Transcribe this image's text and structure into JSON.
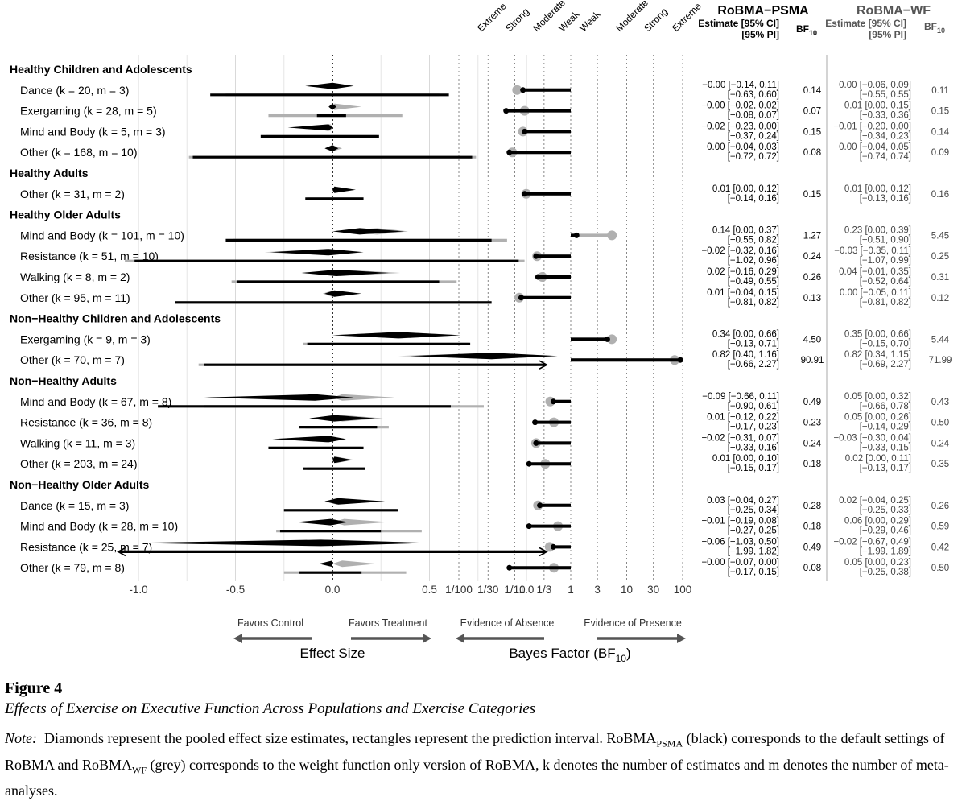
{
  "colors": {
    "psma": "#000000",
    "wf": "#b0b0b0",
    "grid": "#e6e6e6",
    "arrow": "#555555",
    "header_wf": "#555555"
  },
  "chart_data": {
    "type": "forest",
    "title": "Effects of Exercise on Executive Function Across Populations and Exercise Categories",
    "series": [
      {
        "name": "RoBMA-PSMA",
        "color": "#000000"
      },
      {
        "name": "RoBMA-WF",
        "color": "#b0b0b0"
      }
    ],
    "effect_axis": {
      "label": "Effect Size",
      "range": [
        -1.0,
        1.0
      ],
      "ticks": [
        "-1.0",
        "-0.5",
        "0.0",
        "0.5",
        "1.0"
      ],
      "tick_values": [
        -1.0,
        -0.5,
        0.0,
        0.5,
        1.0
      ],
      "left_label": "Favors Control",
      "right_label": "Favors Treatment"
    },
    "bf_axis": {
      "label_main": "Bayes Factor (BF",
      "label_sub": "10",
      "label_close": ")",
      "ticks": [
        "1/100",
        "1/30",
        "1/10",
        "1/3",
        "1",
        "3",
        "10",
        "30",
        "100"
      ],
      "tick_values": [
        0.01,
        0.0333,
        0.1,
        0.3333,
        1,
        3,
        10,
        30,
        100
      ],
      "evidence_labels": [
        "Extreme",
        "Strong",
        "Moderate",
        "Weak",
        "Weak",
        "Moderate",
        "Strong",
        "Extreme"
      ],
      "left_label": "Evidence of Absence",
      "right_label": "Evidence of Presence"
    },
    "headers": {
      "psma_title": "RoBMA−PSMA",
      "wf_title": "RoBMA−WF",
      "estimate_line1": "Estimate [95% CI]",
      "estimate_line2": "[95% PI]",
      "bf_label": "BF",
      "bf_sub": "10"
    },
    "groups": [
      {
        "title": "Healthy Children and Adolescents",
        "rows": [
          {
            "label": "Dance (k = 20, m = 3)",
            "psma": {
              "est": -0.0,
              "ci": [
                -0.14,
                0.11
              ],
              "pi": [
                -0.63,
                0.6
              ],
              "bf": 0.14
            },
            "wf": {
              "est": 0.0,
              "ci": [
                -0.06,
                0.09
              ],
              "pi": [
                -0.55,
                0.55
              ],
              "bf": 0.11
            },
            "text": {
              "psma_line1": "−0.00 [−0.14, 0.11]",
              "psma_line2": "[−0.63, 0.60]",
              "psma_bf": "0.14",
              "wf_line1": "0.00 [−0.06, 0.09]",
              "wf_line2": "[−0.55, 0.55]",
              "wf_bf": "0.11"
            }
          },
          {
            "label": "Exergaming (k = 28, m = 5)",
            "psma": {
              "est": -0.0,
              "ci": [
                -0.02,
                0.02
              ],
              "pi": [
                -0.08,
                0.07
              ],
              "bf": 0.07
            },
            "wf": {
              "est": 0.01,
              "ci": [
                0.0,
                0.15
              ],
              "pi": [
                -0.33,
                0.36
              ],
              "bf": 0.15
            },
            "text": {
              "psma_line1": "−0.00 [−0.02, 0.02]",
              "psma_line2": "[−0.08, 0.07]",
              "psma_bf": "0.07",
              "wf_line1": "0.01 [0.00, 0.15]",
              "wf_line2": "[−0.33, 0.36]",
              "wf_bf": "0.15"
            }
          },
          {
            "label": "Mind and Body (k = 5, m = 3)",
            "psma": {
              "est": -0.02,
              "ci": [
                -0.23,
                0.0
              ],
              "pi": [
                -0.37,
                0.24
              ],
              "bf": 0.15
            },
            "wf": {
              "est": -0.01,
              "ci": [
                -0.2,
                0.0
              ],
              "pi": [
                -0.34,
                0.23
              ],
              "bf": 0.14
            },
            "text": {
              "psma_line1": "−0.02 [−0.23, 0.00]",
              "psma_line2": "[−0.37, 0.24]",
              "psma_bf": "0.15",
              "wf_line1": "−0.01 [−0.20, 0.00]",
              "wf_line2": "[−0.34, 0.23]",
              "wf_bf": "0.14"
            }
          },
          {
            "label": "Other (k = 168, m = 10)",
            "psma": {
              "est": 0.0,
              "ci": [
                -0.04,
                0.03
              ],
              "pi": [
                -0.72,
                0.72
              ],
              "bf": 0.08
            },
            "wf": {
              "est": 0.0,
              "ci": [
                -0.04,
                0.05
              ],
              "pi": [
                -0.74,
                0.74
              ],
              "bf": 0.09
            },
            "text": {
              "psma_line1": "0.00 [−0.04, 0.03]",
              "psma_line2": "[−0.72, 0.72]",
              "psma_bf": "0.08",
              "wf_line1": "0.00 [−0.04, 0.05]",
              "wf_line2": "[−0.74, 0.74]",
              "wf_bf": "0.09"
            }
          }
        ]
      },
      {
        "title": "Healthy Adults",
        "rows": [
          {
            "label": "Other (k = 31, m = 2)",
            "psma": {
              "est": 0.01,
              "ci": [
                0.0,
                0.12
              ],
              "pi": [
                -0.14,
                0.16
              ],
              "bf": 0.15
            },
            "wf": {
              "est": 0.01,
              "ci": [
                0.0,
                0.12
              ],
              "pi": [
                -0.13,
                0.16
              ],
              "bf": 0.16
            },
            "text": {
              "psma_line1": "0.01 [0.00, 0.12]",
              "psma_line2": "[−0.14, 0.16]",
              "psma_bf": "0.15",
              "wf_line1": "0.01 [0.00, 0.12]",
              "wf_line2": "[−0.13, 0.16]",
              "wf_bf": "0.16"
            }
          }
        ]
      },
      {
        "title": "Healthy Older Adults",
        "rows": [
          {
            "label": "Mind and Body (k = 101, m = 10)",
            "psma": {
              "est": 0.14,
              "ci": [
                0.0,
                0.37
              ],
              "pi": [
                -0.55,
                0.82
              ],
              "bf": 1.27
            },
            "wf": {
              "est": 0.23,
              "ci": [
                0.0,
                0.39
              ],
              "pi": [
                -0.51,
                0.9
              ],
              "bf": 5.45
            },
            "text": {
              "psma_line1": "0.14 [0.00, 0.37]",
              "psma_line2": "[−0.55, 0.82]",
              "psma_bf": "1.27",
              "wf_line1": "0.23 [0.00, 0.39]",
              "wf_line2": "[−0.51, 0.90]",
              "wf_bf": "5.45"
            }
          },
          {
            "label": "Resistance (k = 51, m = 10)",
            "psma": {
              "est": -0.02,
              "ci": [
                -0.32,
                0.16
              ],
              "pi": [
                -1.02,
                0.96
              ],
              "bf": 0.24
            },
            "wf": {
              "est": -0.03,
              "ci": [
                -0.35,
                0.11
              ],
              "pi": [
                -1.07,
                0.99
              ],
              "bf": 0.25
            },
            "text": {
              "psma_line1": "−0.02 [−0.32, 0.16]",
              "psma_line2": "[−1.02, 0.96]",
              "psma_bf": "0.24",
              "wf_line1": "−0.03 [−0.35, 0.11]",
              "wf_line2": "[−1.07, 0.99]",
              "wf_bf": "0.25"
            }
          },
          {
            "label": "Walking (k = 8, m = 2)",
            "psma": {
              "est": 0.02,
              "ci": [
                -0.16,
                0.29
              ],
              "pi": [
                -0.49,
                0.55
              ],
              "bf": 0.26
            },
            "wf": {
              "est": 0.04,
              "ci": [
                -0.01,
                0.35
              ],
              "pi": [
                -0.52,
                0.64
              ],
              "bf": 0.31
            },
            "text": {
              "psma_line1": "0.02 [−0.16, 0.29]",
              "psma_line2": "[−0.49, 0.55]",
              "psma_bf": "0.26",
              "wf_line1": "0.04 [−0.01, 0.35]",
              "wf_line2": "[−0.52, 0.64]",
              "wf_bf": "0.31"
            }
          },
          {
            "label": "Other (k = 95, m = 11)",
            "psma": {
              "est": 0.01,
              "ci": [
                -0.04,
                0.15
              ],
              "pi": [
                -0.81,
                0.82
              ],
              "bf": 0.13
            },
            "wf": {
              "est": 0.0,
              "ci": [
                -0.05,
                0.11
              ],
              "pi": [
                -0.81,
                0.82
              ],
              "bf": 0.12
            },
            "text": {
              "psma_line1": "0.01 [−0.04, 0.15]",
              "psma_line2": "[−0.81, 0.82]",
              "psma_bf": "0.13",
              "wf_line1": "0.00 [−0.05, 0.11]",
              "wf_line2": "[−0.81, 0.82]",
              "wf_bf": "0.12"
            }
          }
        ]
      },
      {
        "title": "Non−Healthy Children and Adolescents",
        "rows": [
          {
            "label": "Exergaming (k = 9, m = 3)",
            "psma": {
              "est": 0.34,
              "ci": [
                0.0,
                0.66
              ],
              "pi": [
                -0.13,
                0.71
              ],
              "bf": 4.5
            },
            "wf": {
              "est": 0.35,
              "ci": [
                0.0,
                0.66
              ],
              "pi": [
                -0.15,
                0.7
              ],
              "bf": 5.44
            },
            "text": {
              "psma_line1": "0.34 [0.00, 0.66]",
              "psma_line2": "[−0.13, 0.71]",
              "psma_bf": "4.50",
              "wf_line1": "0.35 [0.00, 0.66]",
              "wf_line2": "[−0.15, 0.70]",
              "wf_bf": "5.44"
            }
          },
          {
            "label": "Other (k = 70, m = 7)",
            "psma": {
              "est": 0.82,
              "ci": [
                0.4,
                1.16
              ],
              "pi": [
                -0.66,
                2.27
              ],
              "bf": 90.91
            },
            "wf": {
              "est": 0.82,
              "ci": [
                0.34,
                1.15
              ],
              "pi": [
                -0.69,
                2.27
              ],
              "bf": 71.99
            },
            "text": {
              "psma_line1": "0.82 [0.40, 1.16]",
              "psma_line2": "[−0.66, 2.27]",
              "psma_bf": "90.91",
              "wf_line1": "0.82 [0.34, 1.15]",
              "wf_line2": "[−0.69, 2.27]",
              "wf_bf": "71.99"
            }
          }
        ]
      },
      {
        "title": "Non−Healthy Adults",
        "rows": [
          {
            "label": "Mind and Body (k = 67, m = 8)",
            "psma": {
              "est": -0.09,
              "ci": [
                -0.66,
                0.11
              ],
              "pi": [
                -0.9,
                0.61
              ],
              "bf": 0.49
            },
            "wf": {
              "est": 0.05,
              "ci": [
                0.0,
                0.32
              ],
              "pi": [
                -0.66,
                0.78
              ],
              "bf": 0.43
            },
            "text": {
              "psma_line1": "−0.09 [−0.66, 0.11]",
              "psma_line2": "[−0.90, 0.61]",
              "psma_bf": "0.49",
              "wf_line1": "0.05 [0.00, 0.32]",
              "wf_line2": "[−0.66, 0.78]",
              "wf_bf": "0.43"
            }
          },
          {
            "label": "Resistance (k = 36, m = 8)",
            "psma": {
              "est": 0.01,
              "ci": [
                -0.12,
                0.22
              ],
              "pi": [
                -0.17,
                0.23
              ],
              "bf": 0.23
            },
            "wf": {
              "est": 0.05,
              "ci": [
                0.0,
                0.26
              ],
              "pi": [
                -0.14,
                0.29
              ],
              "bf": 0.5
            },
            "text": {
              "psma_line1": "0.01 [−0.12, 0.22]",
              "psma_line2": "[−0.17, 0.23]",
              "psma_bf": "0.23",
              "wf_line1": "0.05 [0.00, 0.26]",
              "wf_line2": "[−0.14, 0.29]",
              "wf_bf": "0.50"
            }
          },
          {
            "label": "Walking (k = 11, m = 3)",
            "psma": {
              "est": -0.02,
              "ci": [
                -0.31,
                0.07
              ],
              "pi": [
                -0.33,
                0.16
              ],
              "bf": 0.24
            },
            "wf": {
              "est": -0.03,
              "ci": [
                -0.3,
                0.04
              ],
              "pi": [
                -0.33,
                0.15
              ],
              "bf": 0.24
            },
            "text": {
              "psma_line1": "−0.02 [−0.31, 0.07]",
              "psma_line2": "[−0.33, 0.16]",
              "psma_bf": "0.24",
              "wf_line1": "−0.03 [−0.30, 0.04]",
              "wf_line2": "[−0.33, 0.15]",
              "wf_bf": "0.24"
            }
          },
          {
            "label": "Other (k = 203, m = 24)",
            "psma": {
              "est": 0.01,
              "ci": [
                0.0,
                0.1
              ],
              "pi": [
                -0.15,
                0.17
              ],
              "bf": 0.18
            },
            "wf": {
              "est": 0.02,
              "ci": [
                0.0,
                0.11
              ],
              "pi": [
                -0.13,
                0.17
              ],
              "bf": 0.35
            },
            "text": {
              "psma_line1": "0.01 [0.00, 0.10]",
              "psma_line2": "[−0.15, 0.17]",
              "psma_bf": "0.18",
              "wf_line1": "0.02 [0.00, 0.11]",
              "wf_line2": "[−0.13, 0.17]",
              "wf_bf": "0.35"
            }
          }
        ]
      },
      {
        "title": "Non−Healthy Older Adults",
        "rows": [
          {
            "label": "Dance (k = 15, m = 3)",
            "psma": {
              "est": 0.03,
              "ci": [
                -0.04,
                0.27
              ],
              "pi": [
                -0.25,
                0.34
              ],
              "bf": 0.28
            },
            "wf": {
              "est": 0.02,
              "ci": [
                -0.04,
                0.25
              ],
              "pi": [
                -0.25,
                0.33
              ],
              "bf": 0.26
            },
            "text": {
              "psma_line1": "0.03 [−0.04, 0.27]",
              "psma_line2": "[−0.25, 0.34]",
              "psma_bf": "0.28",
              "wf_line1": "0.02 [−0.04, 0.25]",
              "wf_line2": "[−0.25, 0.33]",
              "wf_bf": "0.26"
            }
          },
          {
            "label": "Mind and Body (k = 28, m = 10)",
            "psma": {
              "est": -0.01,
              "ci": [
                -0.19,
                0.08
              ],
              "pi": [
                -0.27,
                0.25
              ],
              "bf": 0.18
            },
            "wf": {
              "est": 0.06,
              "ci": [
                0.0,
                0.29
              ],
              "pi": [
                -0.29,
                0.46
              ],
              "bf": 0.59
            },
            "text": {
              "psma_line1": "−0.01 [−0.19, 0.08]",
              "psma_line2": "[−0.27, 0.25]",
              "psma_bf": "0.18",
              "wf_line1": "0.06 [0.00, 0.29]",
              "wf_line2": "[−0.29, 0.46]",
              "wf_bf": "0.59"
            }
          },
          {
            "label": "Resistance (k = 25, m = 7)",
            "psma": {
              "est": -0.06,
              "ci": [
                -1.03,
                0.5
              ],
              "pi": [
                -1.99,
                1.82
              ],
              "bf": 0.49
            },
            "wf": {
              "est": -0.02,
              "ci": [
                -0.67,
                0.49
              ],
              "pi": [
                -1.99,
                1.89
              ],
              "bf": 0.42
            },
            "text": {
              "psma_line1": "−0.06 [−1.03, 0.50]",
              "psma_line2": "[−1.99, 1.82]",
              "psma_bf": "0.49",
              "wf_line1": "−0.02 [−0.67, 0.49]",
              "wf_line2": "[−1.99, 1.89]",
              "wf_bf": "0.42"
            }
          },
          {
            "label": "Other (k = 79, m = 8)",
            "psma": {
              "est": -0.0,
              "ci": [
                -0.07,
                0.0
              ],
              "pi": [
                -0.17,
                0.15
              ],
              "bf": 0.08
            },
            "wf": {
              "est": 0.05,
              "ci": [
                0.0,
                0.23
              ],
              "pi": [
                -0.25,
                0.38
              ],
              "bf": 0.5
            },
            "text": {
              "psma_line1": "−0.00 [−0.07, 0.00]",
              "psma_line2": "[−0.17, 0.15]",
              "psma_bf": "0.08",
              "wf_line1": "0.05 [0.00, 0.23]",
              "wf_line2": "[−0.25, 0.38]",
              "wf_bf": "0.50"
            }
          }
        ]
      }
    ]
  },
  "caption": {
    "figure_number": "Figure 4",
    "figure_title": "Effects of Exercise on Executive Function Across Populations and Exercise Categories",
    "note_label": "Note:",
    "note_part1": "Diamonds represent the pooled effect size estimates, rectangles represent the prediction interval. RoBMA",
    "note_sub1": "PSMA",
    "note_part2": "(black) corresponds to the default settings of RoBMA and RoBMA",
    "note_sub2": "WF",
    "note_part3": "(grey) corresponds to the weight function only version of RoBMA, k denotes the number of estimates and m denotes the number of meta-analyses."
  }
}
